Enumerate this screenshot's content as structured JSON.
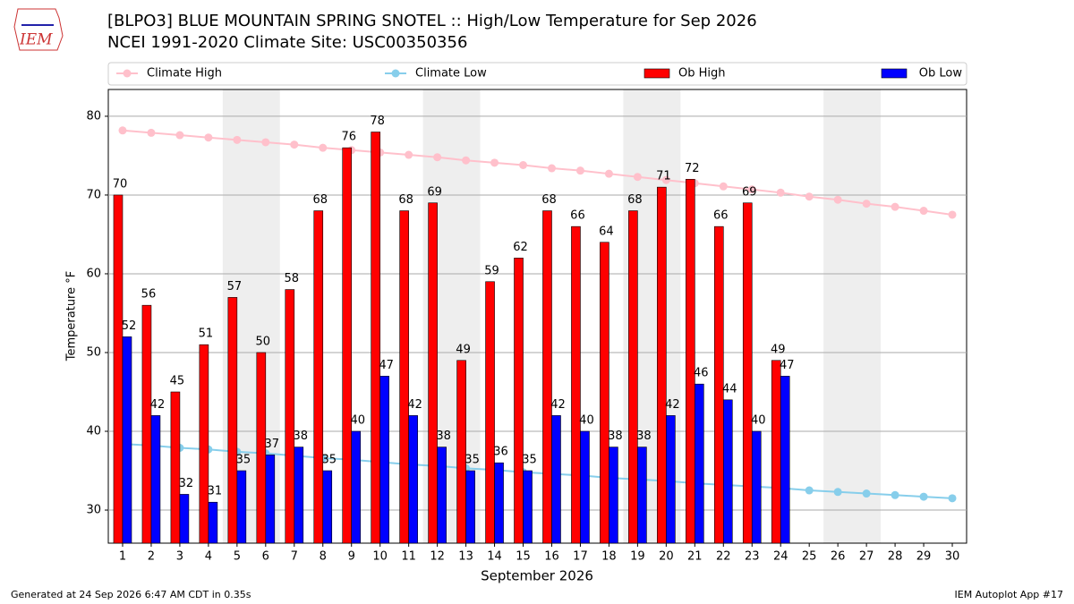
{
  "chart_data": {
    "type": "bar",
    "title": "[BLPO3] BLUE MOUNTAIN SPRING SNOTEL :: High/Low Temperature for Sep 2026",
    "subtitle": "NCEI 1991-2020 Climate Site: USC00350356",
    "logo_text": "IEM",
    "xlabel": "September 2026",
    "ylabel": "Temperature °F",
    "footer_left": "Generated at 24 Sep 2026 6:47 AM CDT in 0.35s",
    "footer_right": "IEM Autoplot App #17",
    "categories": [
      "1",
      "2",
      "3",
      "4",
      "5",
      "6",
      "7",
      "8",
      "9",
      "10",
      "11",
      "12",
      "13",
      "14",
      "15",
      "16",
      "17",
      "18",
      "19",
      "20",
      "21",
      "22",
      "23",
      "24",
      "25",
      "26",
      "27",
      "28",
      "29",
      "30"
    ],
    "ylim": [
      25.8,
      83.4
    ],
    "yticks": [
      30,
      40,
      50,
      60,
      70,
      80
    ],
    "grid": true,
    "series": [
      {
        "name": "Climate High",
        "type": "line",
        "color": "#ffc0cb",
        "values": [
          78.2,
          77.9,
          77.6,
          77.3,
          77.0,
          76.7,
          76.4,
          76.0,
          75.7,
          75.4,
          75.1,
          74.8,
          74.4,
          74.1,
          73.8,
          73.4,
          73.1,
          72.7,
          72.3,
          71.9,
          71.5,
          71.1,
          70.7,
          70.3,
          69.8,
          69.4,
          68.9,
          68.5,
          68.0,
          67.5
        ]
      },
      {
        "name": "Climate Low",
        "type": "line",
        "color": "#87ceeb",
        "values": [
          38.4,
          38.2,
          37.9,
          37.7,
          37.4,
          37.2,
          36.9,
          36.6,
          36.4,
          36.1,
          35.8,
          35.6,
          35.3,
          35.1,
          34.8,
          34.6,
          34.4,
          34.1,
          33.9,
          33.7,
          33.4,
          33.2,
          33.0,
          32.8,
          32.5,
          32.3,
          32.1,
          31.9,
          31.7,
          31.5
        ]
      },
      {
        "name": "Ob High",
        "type": "bar",
        "color": "#ff0000",
        "values": [
          70,
          56,
          45,
          51,
          57,
          50,
          58,
          68,
          76,
          78,
          68,
          69,
          49,
          59,
          62,
          68,
          66,
          64,
          68,
          71,
          72,
          66,
          69,
          49,
          null,
          null,
          null,
          null,
          null,
          null
        ]
      },
      {
        "name": "Ob Low",
        "type": "bar",
        "color": "#0000ff",
        "values": [
          52,
          42,
          32,
          31,
          35,
          37,
          38,
          35,
          40,
          47,
          42,
          38,
          35,
          36,
          35,
          42,
          40,
          38,
          38,
          42,
          46,
          44,
          40,
          47,
          null,
          null,
          null,
          null,
          null,
          null
        ]
      }
    ]
  }
}
